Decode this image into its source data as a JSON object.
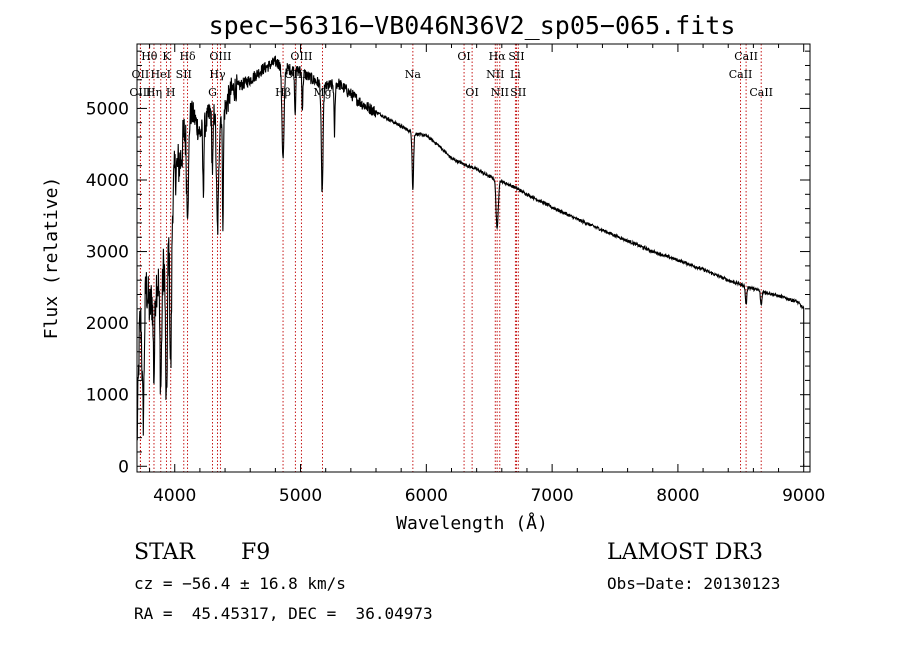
{
  "chart_data": {
    "type": "line",
    "title": "spec−56316−VB046N36V2_sp05−065.fits",
    "xlabel": "Wavelength (Å)",
    "ylabel": "Flux (relative)",
    "xlim": [
      3700,
      9050
    ],
    "ylim": [
      -80,
      5900
    ],
    "xticks": [
      4000,
      5000,
      6000,
      7000,
      8000,
      9000
    ],
    "yticks": [
      0,
      1000,
      2000,
      3000,
      4000,
      5000
    ],
    "grid": false,
    "legend": "none",
    "continuum": [
      [
        3700,
        300
      ],
      [
        3720,
        1900
      ],
      [
        3760,
        2700
      ],
      [
        3800,
        2200
      ],
      [
        3850,
        2550
      ],
      [
        3900,
        2650
      ],
      [
        3950,
        3300
      ],
      [
        4000,
        4100
      ],
      [
        4050,
        4300
      ],
      [
        4100,
        5000
      ],
      [
        4150,
        4900
      ],
      [
        4200,
        4650
      ],
      [
        4250,
        4800
      ],
      [
        4300,
        5050
      ],
      [
        4350,
        4850
      ],
      [
        4400,
        5000
      ],
      [
        4450,
        5250
      ],
      [
        4500,
        5300
      ],
      [
        4600,
        5400
      ],
      [
        4700,
        5550
      ],
      [
        4800,
        5650
      ],
      [
        4900,
        5550
      ],
      [
        5000,
        5520
      ],
      [
        5100,
        5400
      ],
      [
        5200,
        5300
      ],
      [
        5300,
        5350
      ],
      [
        5400,
        5200
      ],
      [
        5500,
        5050
      ],
      [
        5600,
        4950
      ],
      [
        5700,
        4850
      ],
      [
        5800,
        4750
      ],
      [
        5900,
        4650
      ],
      [
        6000,
        4620
      ],
      [
        6100,
        4480
      ],
      [
        6200,
        4300
      ],
      [
        6300,
        4220
      ],
      [
        6400,
        4150
      ],
      [
        6500,
        4050
      ],
      [
        6600,
        3980
      ],
      [
        6700,
        3900
      ],
      [
        6800,
        3800
      ],
      [
        6900,
        3710
      ],
      [
        7000,
        3620
      ],
      [
        7200,
        3450
      ],
      [
        7400,
        3300
      ],
      [
        7600,
        3150
      ],
      [
        7800,
        3000
      ],
      [
        8000,
        2880
      ],
      [
        8200,
        2750
      ],
      [
        8400,
        2600
      ],
      [
        8600,
        2480
      ],
      [
        8800,
        2380
      ],
      [
        8950,
        2300
      ],
      [
        9000,
        2200
      ]
    ],
    "absorption": [
      {
        "w": 3750,
        "depth": 1800,
        "width": 12
      },
      {
        "w": 3835,
        "depth": 1200,
        "width": 8
      },
      {
        "w": 3889,
        "depth": 1500,
        "width": 10
      },
      {
        "w": 3934,
        "depth": 2300,
        "width": 10
      },
      {
        "w": 3968,
        "depth": 2200,
        "width": 10
      },
      {
        "w": 4102,
        "depth": 1400,
        "width": 12
      },
      {
        "w": 4227,
        "depth": 900,
        "width": 6
      },
      {
        "w": 4300,
        "depth": 900,
        "width": 8
      },
      {
        "w": 4340,
        "depth": 1600,
        "width": 12
      },
      {
        "w": 4383,
        "depth": 1500,
        "width": 6
      },
      {
        "w": 4861,
        "depth": 1300,
        "width": 12
      },
      {
        "w": 4957,
        "depth": 600,
        "width": 6
      },
      {
        "w": 5015,
        "depth": 500,
        "width": 6
      },
      {
        "w": 5172,
        "depth": 1500,
        "width": 10
      },
      {
        "w": 5270,
        "depth": 700,
        "width": 6
      },
      {
        "w": 5893,
        "depth": 800,
        "width": 8
      },
      {
        "w": 6563,
        "depth": 700,
        "width": 12
      },
      {
        "w": 8542,
        "depth": 250,
        "width": 8
      },
      {
        "w": 8662,
        "depth": 200,
        "width": 8
      }
    ],
    "lines": [
      {
        "label": "Hθ",
        "w": 3798,
        "row": 0
      },
      {
        "label": "OII",
        "w": 3727,
        "row": 1
      },
      {
        "label": "OIII",
        "w": 3727,
        "row": 2
      },
      {
        "label": "K",
        "w": 3934,
        "row": 0
      },
      {
        "label": "HeI",
        "w": 3889,
        "row": 1
      },
      {
        "label": "Hη",
        "w": 3835,
        "row": 2
      },
      {
        "label": "Hδ",
        "w": 4102,
        "row": 0
      },
      {
        "label": "SII",
        "w": 4072,
        "row": 1
      },
      {
        "label": "H",
        "w": 3968,
        "row": 2
      },
      {
        "label": "OIII",
        "w": 4363,
        "row": 0
      },
      {
        "label": "Hγ",
        "w": 4340,
        "row": 1
      },
      {
        "label": "G",
        "w": 4300,
        "row": 2
      },
      {
        "label": "OIII",
        "w": 5007,
        "row": 0
      },
      {
        "label": "OIII",
        "w": 4959,
        "row": 1
      },
      {
        "label": "Hβ",
        "w": 4861,
        "row": 2
      },
      {
        "label": "Mg",
        "w": 5175,
        "row": 2
      },
      {
        "label": "Na",
        "w": 5893,
        "row": 1
      },
      {
        "label": "OI",
        "w": 6300,
        "row": 0
      },
      {
        "label": "OI",
        "w": 6364,
        "row": 2
      },
      {
        "label": "Hα",
        "w": 6563,
        "row": 0
      },
      {
        "label": "NII",
        "w": 6548,
        "row": 1
      },
      {
        "label": "NII",
        "w": 6584,
        "row": 2
      },
      {
        "label": "SII",
        "w": 6717,
        "row": 0
      },
      {
        "label": "Li",
        "w": 6708,
        "row": 1
      },
      {
        "label": "SII",
        "w": 6731,
        "row": 2
      },
      {
        "label": "CaII",
        "w": 8542,
        "row": 0
      },
      {
        "label": "CaII",
        "w": 8498,
        "row": 1
      },
      {
        "label": "CaII",
        "w": 8662,
        "row": 2
      }
    ]
  },
  "info": {
    "object_class": "STAR",
    "subclass": "F9",
    "survey": "LAMOST DR3",
    "cz": "cz = −56.4 ± 16.8 km/s",
    "obs_date": "Obs−Date: 20130123",
    "coords": "RA =  45.45317, DEC =  36.04973"
  }
}
